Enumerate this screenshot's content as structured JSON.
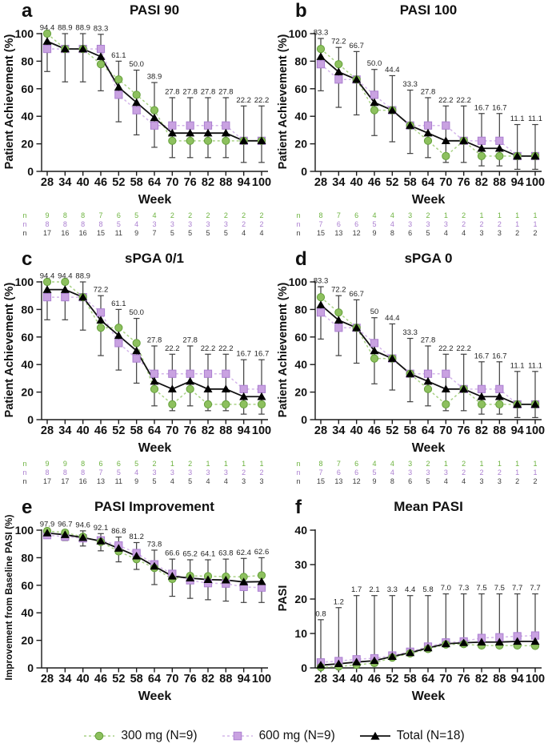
{
  "figure": {
    "week_label": "Week",
    "n_row_label": "n",
    "colors": {
      "green_fill": "#8dc05e",
      "green_edge": "#64a03a",
      "green_line": "#a9d285",
      "purple_fill": "#c9a2e1",
      "purple_edge": "#ab7fd0",
      "purple_line": "#d4b6ea",
      "black": "#111111",
      "error": "#404040",
      "label": "#1f1f1f",
      "n_green": "#6db33f",
      "n_purple": "#ab7fd0",
      "n_black": "#3c3c3c"
    },
    "legend": [
      {
        "key": "p300",
        "label": "300 mg (N=9)"
      },
      {
        "key": "p600",
        "label": "600 mg (N=9)"
      },
      {
        "key": "total",
        "label": "Total (N=18)"
      }
    ]
  },
  "chart_data": [
    {
      "panel": "a",
      "type": "line",
      "title": "PASI 90",
      "ylabel": "Patient Achievement (%)",
      "xlabel": "Week",
      "ylim": [
        0,
        100
      ],
      "yticks": [
        0,
        20,
        40,
        60,
        80,
        100
      ],
      "x": [
        28,
        34,
        40,
        46,
        52,
        58,
        64,
        70,
        76,
        82,
        88,
        94,
        100
      ],
      "series": [
        {
          "key": "p300",
          "name": "300 mg (N=9)",
          "values": [
            100,
            88.9,
            88.9,
            77.8,
            66.7,
            55.6,
            44.4,
            22.2,
            22.2,
            22.2,
            22.2,
            22.2,
            22.2
          ]
        },
        {
          "key": "p600",
          "name": "600 mg (N=9)",
          "values": [
            88.9,
            88.9,
            88.9,
            88.9,
            55.6,
            44.4,
            33.3,
            33.3,
            33.3,
            33.3,
            33.3,
            22.2,
            22.2
          ]
        },
        {
          "key": "total",
          "name": "Total (N=18)",
          "values": [
            94.4,
            88.9,
            88.9,
            83.3,
            61.1,
            50,
            38.9,
            27.8,
            27.8,
            27.8,
            27.8,
            22.2,
            22.2
          ],
          "labels": [
            "94.4",
            "88.9",
            "88.9",
            "83.3",
            "61.1",
            "50.0",
            "38.9",
            "27.8",
            "27.8",
            "27.8",
            "27.8",
            "22.2",
            "22.2"
          ],
          "err_lo": [
            72.5,
            65,
            65,
            58.5,
            36,
            26.5,
            17.5,
            10,
            10,
            10,
            10,
            6.5,
            6.5
          ],
          "err_hi": [
            100,
            100,
            100,
            99.5,
            80,
            73.5,
            64.5,
            53.5,
            53.5,
            53.5,
            53.5,
            47.5,
            47.5
          ]
        }
      ],
      "n_table": [
        {
          "key": "p300",
          "values": [
            9,
            8,
            8,
            7,
            6,
            5,
            4,
            2,
            2,
            2,
            2,
            2,
            2
          ]
        },
        {
          "key": "p600",
          "values": [
            8,
            8,
            8,
            8,
            5,
            4,
            3,
            3,
            3,
            3,
            3,
            2,
            2
          ]
        },
        {
          "key": "total",
          "values": [
            17,
            16,
            16,
            15,
            11,
            9,
            7,
            5,
            5,
            5,
            5,
            4,
            4
          ]
        }
      ]
    },
    {
      "panel": "b",
      "type": "line",
      "title": "PASI 100",
      "ylabel": "Patient Achievement (%)",
      "xlabel": "Week",
      "ylim": [
        0,
        100
      ],
      "yticks": [
        0,
        20,
        40,
        60,
        80,
        100
      ],
      "x": [
        28,
        34,
        40,
        46,
        52,
        58,
        64,
        70,
        76,
        82,
        88,
        94,
        100
      ],
      "series": [
        {
          "key": "p300",
          "name": "300 mg (N=9)",
          "values": [
            88.9,
            77.8,
            66.7,
            44.4,
            44.4,
            33.3,
            22.2,
            11.1,
            22.2,
            11.1,
            11.1,
            11.1,
            11.1
          ]
        },
        {
          "key": "p600",
          "name": "600 mg (N=9)",
          "values": [
            77.8,
            66.7,
            66.7,
            55.6,
            44.4,
            33.3,
            33.3,
            33.3,
            22.2,
            22.2,
            22.2,
            11.1,
            11.1
          ]
        },
        {
          "key": "total",
          "name": "Total (N=18)",
          "values": [
            83.3,
            72.2,
            66.7,
            50,
            44.4,
            33.3,
            27.8,
            22.2,
            22.2,
            16.7,
            16.7,
            11.1,
            11.1
          ],
          "labels": [
            "83.3",
            "72.2",
            "66.7",
            "50.0",
            "44.4",
            "33.3",
            "27.8",
            "22.2",
            "22.2",
            "16.7",
            "16.7",
            "11.1",
            "11.1"
          ],
          "err_lo": [
            58.5,
            46.5,
            41,
            26,
            21.5,
            13,
            10,
            6.5,
            6.5,
            4,
            4,
            1.5,
            1.5
          ],
          "err_hi": [
            96.5,
            90,
            87,
            74,
            69.5,
            59,
            53.5,
            47.5,
            47.5,
            42,
            42,
            34,
            34
          ]
        }
      ],
      "n_table": [
        {
          "key": "p300",
          "values": [
            8,
            7,
            6,
            4,
            4,
            3,
            2,
            1,
            2,
            1,
            1,
            1,
            1
          ]
        },
        {
          "key": "p600",
          "values": [
            7,
            6,
            6,
            5,
            4,
            3,
            3,
            3,
            2,
            2,
            2,
            1,
            1
          ]
        },
        {
          "key": "total",
          "values": [
            15,
            13,
            12,
            9,
            8,
            6,
            5,
            4,
            4,
            3,
            3,
            2,
            2
          ]
        }
      ]
    },
    {
      "panel": "c",
      "type": "line",
      "title": "sPGA 0/1",
      "ylabel": "Patient Achievement (%)",
      "xlabel": "Week",
      "ylim": [
        0,
        100
      ],
      "yticks": [
        0,
        20,
        40,
        60,
        80,
        100
      ],
      "x": [
        28,
        34,
        40,
        46,
        52,
        58,
        64,
        70,
        76,
        82,
        88,
        94,
        100
      ],
      "series": [
        {
          "key": "p300",
          "name": "300 mg (N=9)",
          "values": [
            100,
            100,
            88.9,
            66.7,
            66.7,
            55.6,
            22.2,
            11.1,
            22.2,
            11.1,
            11.1,
            11.1,
            11.1
          ]
        },
        {
          "key": "p600",
          "name": "600 mg (N=9)",
          "values": [
            88.9,
            88.9,
            88.9,
            77.8,
            55.6,
            44.4,
            33.3,
            33.3,
            33.3,
            33.3,
            33.3,
            22.2,
            22.2
          ]
        },
        {
          "key": "total",
          "name": "Total (N=18)",
          "values": [
            94.4,
            94.4,
            88.9,
            72.2,
            61.1,
            50,
            27.8,
            22.2,
            27.8,
            22.2,
            22.2,
            16.7,
            16.7
          ],
          "labels": [
            "94.4",
            "94.4",
            "88.9",
            "72.2",
            "61.1",
            "50.0",
            "27.8",
            "22.2",
            "27.8",
            "22.2",
            "22.2",
            "16.7",
            "16.7"
          ],
          "err_lo": [
            72.5,
            72.5,
            65,
            46.5,
            36,
            26.5,
            10,
            6.5,
            10,
            6.5,
            6.5,
            4,
            4
          ],
          "err_hi": [
            100,
            100,
            100,
            90,
            80,
            73.5,
            53.5,
            47.5,
            53.5,
            47.5,
            47.5,
            43.5,
            43.5
          ]
        }
      ],
      "n_table": [
        {
          "key": "p300",
          "values": [
            9,
            9,
            8,
            6,
            6,
            5,
            2,
            1,
            2,
            1,
            1,
            1,
            1
          ]
        },
        {
          "key": "p600",
          "values": [
            8,
            8,
            8,
            7,
            5,
            4,
            3,
            3,
            3,
            3,
            3,
            2,
            2
          ]
        },
        {
          "key": "total",
          "values": [
            17,
            17,
            16,
            13,
            11,
            9,
            5,
            4,
            5,
            4,
            4,
            3,
            3
          ]
        }
      ]
    },
    {
      "panel": "d",
      "type": "line",
      "title": "sPGA 0",
      "ylabel": "Patient Achievement (%)",
      "xlabel": "Week",
      "ylim": [
        0,
        100
      ],
      "yticks": [
        0,
        20,
        40,
        60,
        80,
        100
      ],
      "x": [
        28,
        34,
        40,
        46,
        52,
        58,
        64,
        70,
        76,
        82,
        88,
        94,
        100
      ],
      "series": [
        {
          "key": "p300",
          "name": "300 mg (N=9)",
          "values": [
            88.9,
            77.8,
            66.7,
            44.4,
            44.4,
            33.3,
            22.2,
            11.1,
            22.2,
            11.1,
            11.1,
            11.1,
            11.1
          ]
        },
        {
          "key": "p600",
          "name": "600 mg (N=9)",
          "values": [
            77.8,
            66.7,
            66.7,
            55.6,
            44.4,
            33.3,
            33.3,
            33.3,
            22.2,
            22.2,
            22.2,
            11.1,
            11.1
          ]
        },
        {
          "key": "total",
          "name": "Total (N=18)",
          "values": [
            83.3,
            72.2,
            66.7,
            50,
            44.4,
            33.3,
            27.8,
            22.2,
            22.2,
            16.7,
            16.7,
            11.1,
            11.1
          ],
          "labels": [
            "83.3",
            "72.2",
            "66.7",
            "50",
            "44.4",
            "33.3",
            "27.8",
            "22.2",
            "22.2",
            "16.7",
            "16.7",
            "11.1",
            "11.1"
          ],
          "err_lo": [
            58.5,
            46.5,
            41,
            26,
            21.5,
            13,
            10,
            6.5,
            6.5,
            4,
            4,
            1.5,
            1.5
          ],
          "err_hi": [
            96.5,
            90,
            87,
            74,
            69.5,
            59,
            53.5,
            47.5,
            47.5,
            42,
            42,
            35,
            35
          ]
        }
      ],
      "n_table": [
        {
          "key": "p300",
          "values": [
            8,
            7,
            6,
            4,
            4,
            3,
            2,
            1,
            2,
            1,
            1,
            1,
            1
          ]
        },
        {
          "key": "p600",
          "values": [
            7,
            6,
            6,
            5,
            4,
            3,
            3,
            3,
            2,
            2,
            2,
            1,
            1
          ]
        },
        {
          "key": "total",
          "values": [
            15,
            13,
            12,
            9,
            8,
            6,
            5,
            4,
            4,
            3,
            3,
            2,
            2
          ]
        }
      ]
    },
    {
      "panel": "e",
      "type": "line",
      "title": "PASI Improvement",
      "ylabel": "Improvement from Baseline PASI (%)",
      "xlabel": "Week",
      "ylim": [
        0,
        100
      ],
      "yticks": [
        0,
        20,
        40,
        60,
        80,
        100
      ],
      "x": [
        28,
        34,
        40,
        46,
        52,
        58,
        64,
        70,
        76,
        82,
        88,
        94,
        100
      ],
      "series": [
        {
          "key": "p300",
          "name": "300 mg (N=9)",
          "values": [
            99.4,
            98.2,
            95.2,
            91.5,
            84.6,
            78.9,
            72.5,
            64.5,
            66.8,
            66.6,
            66.3,
            66.1,
            67.2
          ]
        },
        {
          "key": "p600",
          "name": "600 mg (N=9)",
          "values": [
            96.4,
            95.3,
            94.1,
            92.6,
            88.9,
            83.4,
            75.2,
            68.3,
            63.6,
            61.5,
            61.2,
            58.8,
            58.3
          ]
        },
        {
          "key": "total",
          "name": "Total (N=18)",
          "values": [
            97.9,
            96.7,
            94.6,
            92.1,
            86.8,
            81.2,
            73.8,
            66.6,
            65.2,
            64.1,
            63.8,
            62.4,
            62.6
          ],
          "labels": [
            "97.9",
            "96.7",
            "94.6",
            "92.1",
            "86.8",
            "81.2",
            "73.8",
            "66.6",
            "65.2",
            "64.1",
            "63.8",
            "62.4",
            "62.6"
          ],
          "err_lo": [
            95,
            92.5,
            88.5,
            85,
            77,
            71.5,
            60.5,
            52,
            50.5,
            49.5,
            48.5,
            47.5,
            47.5
          ],
          "err_hi": [
            100,
            100,
            99.5,
            97.5,
            95,
            91,
            85.5,
            79,
            78.5,
            78.5,
            79,
            79.5,
            80
          ]
        }
      ]
    },
    {
      "panel": "f",
      "type": "line",
      "title": "Mean PASI",
      "ylabel": "PASI",
      "xlabel": "Week",
      "ylim": [
        0,
        40
      ],
      "yticks": [
        0,
        10,
        20,
        30,
        40
      ],
      "x": [
        28,
        34,
        40,
        46,
        52,
        58,
        64,
        70,
        76,
        82,
        88,
        94,
        100
      ],
      "series": [
        {
          "key": "p300",
          "name": "300 mg (N=9)",
          "values": [
            0.2,
            0.4,
            0.9,
            1.4,
            3.0,
            4.2,
            5.5,
            6.8,
            6.9,
            6.5,
            6.5,
            6.5,
            6.4
          ]
        },
        {
          "key": "p600",
          "name": "600 mg (N=9)",
          "values": [
            1.6,
            2.0,
            2.5,
            2.8,
            3.6,
            4.7,
            6.2,
            7.4,
            7.7,
            8.7,
            8.9,
            9.2,
            9.4
          ]
        },
        {
          "key": "total",
          "name": "Total (N=18)",
          "values": [
            0.8,
            1.2,
            1.7,
            2.1,
            3.3,
            4.4,
            5.8,
            7.0,
            7.3,
            7.5,
            7.5,
            7.7,
            7.7
          ],
          "labels": [
            "0.8",
            "1.2",
            "1.7",
            "2.1",
            "3.3",
            "4.4",
            "5.8",
            "7.0",
            "7.3",
            "7.5",
            "7.5",
            "7.7",
            "7.7"
          ],
          "err_lo": [
            0.8,
            1.2,
            1.7,
            2.1,
            3.3,
            4.4,
            5.8,
            7.0,
            7.3,
            7.5,
            7.5,
            7.7,
            7.7
          ],
          "err_hi": [
            14,
            17.5,
            21,
            21,
            21,
            21,
            21,
            21.5,
            21.5,
            21.5,
            21.5,
            21.5,
            21.5
          ]
        }
      ]
    }
  ]
}
